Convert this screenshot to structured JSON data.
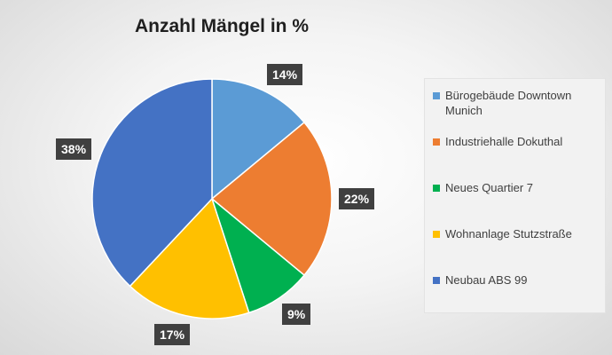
{
  "chart_data": {
    "type": "pie",
    "title": "Anzahl Mängel in %",
    "categories": [
      "Bürogebäude Downtown Munich",
      "Industriehalle Dokuthal",
      "Neues Quartier 7",
      "Wohnanlage Stutzstraße",
      "Neubau ABS 99"
    ],
    "values": [
      14,
      22,
      9,
      17,
      38
    ],
    "data_labels": [
      "14%",
      "22%",
      "9%",
      "17%",
      "38%"
    ],
    "colors": [
      "#5B9BD5",
      "#ED7D31",
      "#00B050",
      "#FFC000",
      "#4472C4"
    ],
    "start_angle_deg": 0,
    "direction": "clockwise",
    "legend_position": "right"
  }
}
